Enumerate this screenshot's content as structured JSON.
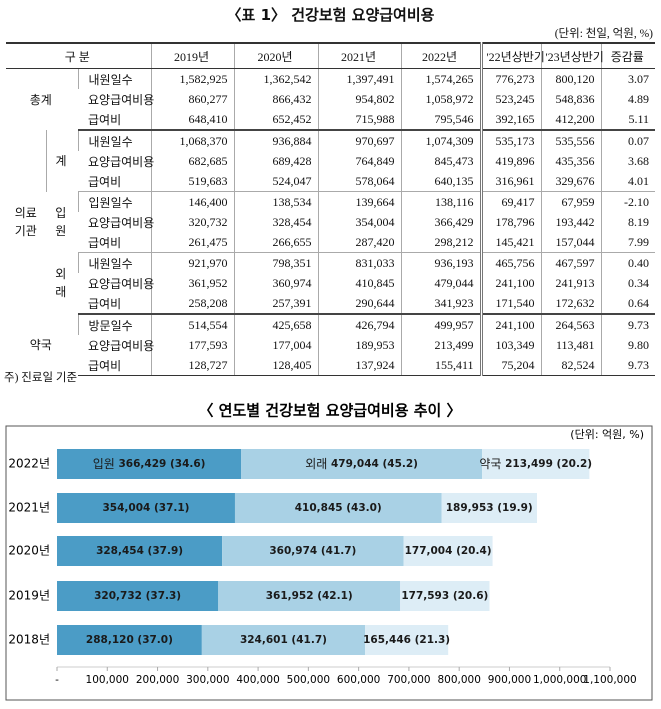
{
  "table": {
    "title": "〈표 1〉 건강보험 요양급여비용",
    "unit": "(단위: 천일, 억원, %)",
    "columns": [
      "구 분",
      "2019년",
      "2020년",
      "2021년",
      "2022년",
      "'22년상반기",
      "'23년상반기",
      "증감률"
    ],
    "sections": [
      {
        "label": "총계",
        "rows": [
          {
            "label": "내원일수",
            "values": [
              "1,582,925",
              "1,362,542",
              "1,397,491",
              "1,574,265",
              "776,273",
              "800,120",
              "3.07"
            ]
          },
          {
            "label": "요양급여비용",
            "values": [
              "860,277",
              "866,432",
              "954,802",
              "1,058,972",
              "523,245",
              "548,836",
              "4.89"
            ]
          },
          {
            "label": "급여비",
            "values": [
              "648,410",
              "652,452",
              "715,988",
              "795,546",
              "392,165",
              "412,200",
              "5.11"
            ]
          }
        ]
      },
      {
        "label": "의료기관",
        "subsections": [
          {
            "label": "계",
            "rows": [
              {
                "label": "내원일수",
                "values": [
                  "1,068,370",
                  "936,884",
                  "970,697",
                  "1,074,309",
                  "535,173",
                  "535,556",
                  "0.07"
                ]
              },
              {
                "label": "요양급여비용",
                "values": [
                  "682,685",
                  "689,428",
                  "764,849",
                  "845,473",
                  "419,896",
                  "435,356",
                  "3.68"
                ]
              },
              {
                "label": "급여비",
                "values": [
                  "519,683",
                  "524,047",
                  "578,064",
                  "640,135",
                  "316,961",
                  "329,676",
                  "4.01"
                ]
              }
            ]
          },
          {
            "label": "입원",
            "rows": [
              {
                "label": "입원일수",
                "values": [
                  "146,400",
                  "138,534",
                  "139,664",
                  "138,116",
                  "69,417",
                  "67,959",
                  "-2.10"
                ]
              },
              {
                "label": "요양급여비용",
                "values": [
                  "320,732",
                  "328,454",
                  "354,004",
                  "366,429",
                  "178,796",
                  "193,442",
                  "8.19"
                ]
              },
              {
                "label": "급여비",
                "values": [
                  "261,475",
                  "266,655",
                  "287,420",
                  "298,212",
                  "145,421",
                  "157,044",
                  "7.99"
                ]
              }
            ]
          },
          {
            "label": "외래",
            "rows": [
              {
                "label": "내원일수",
                "values": [
                  "921,970",
                  "798,351",
                  "831,033",
                  "936,193",
                  "465,756",
                  "467,597",
                  "0.40"
                ]
              },
              {
                "label": "요양급여비용",
                "values": [
                  "361,952",
                  "360,974",
                  "410,845",
                  "479,044",
                  "241,100",
                  "241,913",
                  "0.34"
                ]
              },
              {
                "label": "급여비",
                "values": [
                  "258,208",
                  "257,391",
                  "290,644",
                  "341,923",
                  "171,540",
                  "172,632",
                  "0.64"
                ]
              }
            ]
          }
        ]
      },
      {
        "label": "약국",
        "rows": [
          {
            "label": "방문일수",
            "values": [
              "514,554",
              "425,658",
              "426,794",
              "499,957",
              "241,100",
              "264,563",
              "9.73"
            ]
          },
          {
            "label": "요양급여비용",
            "values": [
              "177,593",
              "177,004",
              "189,953",
              "213,499",
              "103,349",
              "113,481",
              "9.80"
            ]
          },
          {
            "label": "급여비",
            "values": [
              "128,727",
              "128,405",
              "137,924",
              "155,411",
              "75,204",
              "82,524",
              "9.73"
            ]
          }
        ]
      }
    ]
  },
  "note": "주) 진료일 기준",
  "chart_data": {
    "type": "stacked-barh",
    "title": "〈 연도별 건강보험 요양급여비용 추이 〉",
    "unit": "(단위: 억원, %)",
    "categories": [
      "2022년",
      "2021년",
      "2020년",
      "2019년",
      "2018년"
    ],
    "series": [
      {
        "name": "입원",
        "color": "#4b9cc6",
        "values": [
          366429,
          354004,
          328454,
          320732,
          288120
        ],
        "value_labels": [
          "366,429 (34.6)",
          "354,004 (37.1)",
          "328,454 (37.9)",
          "320,732 (37.3)",
          "288,120 (37.0)"
        ]
      },
      {
        "name": "외래",
        "color": "#a9d1e5",
        "values": [
          479044,
          410845,
          360974,
          361952,
          324601
        ],
        "value_labels": [
          "479,044 (45.2)",
          "410,845 (43.0)",
          "360,974 (41.7)",
          "361,952 (42.1)",
          "324,601 (41.7)"
        ]
      },
      {
        "name": "약국",
        "color": "#ddedf6",
        "values": [
          213499,
          189953,
          177004,
          177593,
          165446
        ],
        "value_labels": [
          "213,499 (20.2)",
          "189,953 (19.9)",
          "177,004 (20.4)",
          "177,593 (20.6)",
          "165,446 (21.3)"
        ]
      }
    ],
    "xlim": [
      0,
      1100000
    ],
    "xticks": [
      {
        "value": 0,
        "label": "-"
      },
      {
        "value": 100000,
        "label": "100,000"
      },
      {
        "value": 200000,
        "label": "200,000"
      },
      {
        "value": 300000,
        "label": "300,000"
      },
      {
        "value": 400000,
        "label": "400,000"
      },
      {
        "value": 500000,
        "label": "500,000"
      },
      {
        "value": 600000,
        "label": "600,000"
      },
      {
        "value": 700000,
        "label": "700,000"
      },
      {
        "value": 800000,
        "label": "800,000"
      },
      {
        "value": 900000,
        "label": "900,000"
      },
      {
        "value": 1000000,
        "label": "1,000,000"
      },
      {
        "value": 1100000,
        "label": "1,100,000"
      }
    ]
  }
}
